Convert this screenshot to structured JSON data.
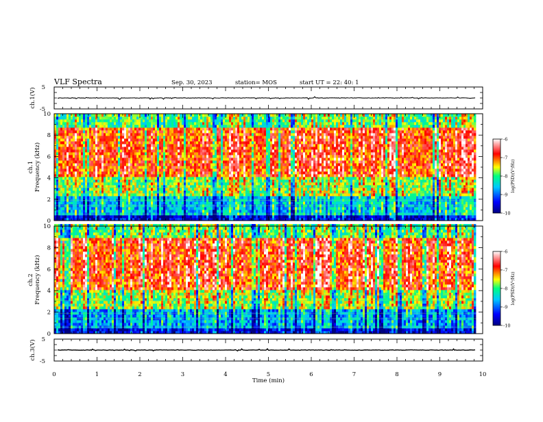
{
  "header": {
    "title": "VLF Spectra",
    "date": "Sep. 30, 2023",
    "station": "station= MOS",
    "start": "start  UT =   22: 40: 1"
  },
  "colors": {
    "spectrum_scale": [
      "#000080",
      "#0000ff",
      "#00c8ff",
      "#00ff80",
      "#ffff00",
      "#ff0000",
      "#ffffff"
    ]
  },
  "chart_data": [
    {
      "type": "line",
      "ylabel": "ch.1(V)",
      "ylim": [
        -5,
        5
      ],
      "ytick_labels": [
        "5",
        "-5"
      ],
      "xlim": [
        0,
        10
      ],
      "x": [
        0,
        10
      ],
      "values": [
        0,
        0
      ]
    },
    {
      "type": "heatmap",
      "ylabel": "ch.1  Frequency  (kHz)",
      "ylim": [
        0,
        10
      ],
      "xlim": [
        0,
        10
      ],
      "ytick_labels": [
        "0",
        "2",
        "4",
        "6",
        "8",
        "10"
      ],
      "data_end_min": 9.85,
      "colorbar": {
        "label": "log(PSD)(V²/Hz)",
        "range": [
          -10,
          -6
        ],
        "tick_labels": [
          "-6",
          "-7",
          "-8",
          "-9",
          "-10"
        ]
      }
    },
    {
      "type": "heatmap",
      "ylabel": "ch.2  Frequency  (kHz)",
      "ylim": [
        0,
        10
      ],
      "xlim": [
        0,
        10
      ],
      "ytick_labels": [
        "0",
        "2",
        "4",
        "6",
        "8",
        "10"
      ],
      "data_end_min": 9.85,
      "colorbar": {
        "label": "log(PSD)(V²/Hz)",
        "range": [
          -10,
          -6
        ],
        "tick_labels": [
          "-6",
          "-7",
          "-8",
          "-9",
          "-10"
        ]
      }
    },
    {
      "type": "line",
      "ylabel": "ch.3(V)",
      "ylim": [
        -5,
        5
      ],
      "ytick_labels": [
        "5",
        "-5"
      ],
      "xlim": [
        0,
        10
      ],
      "x": [
        0,
        10
      ],
      "values": [
        0,
        0
      ]
    }
  ],
  "xaxis": {
    "label": "Time  (min)",
    "tick_labels": [
      "0",
      "1",
      "2",
      "3",
      "4",
      "5",
      "6",
      "7",
      "8",
      "9",
      "10"
    ]
  }
}
